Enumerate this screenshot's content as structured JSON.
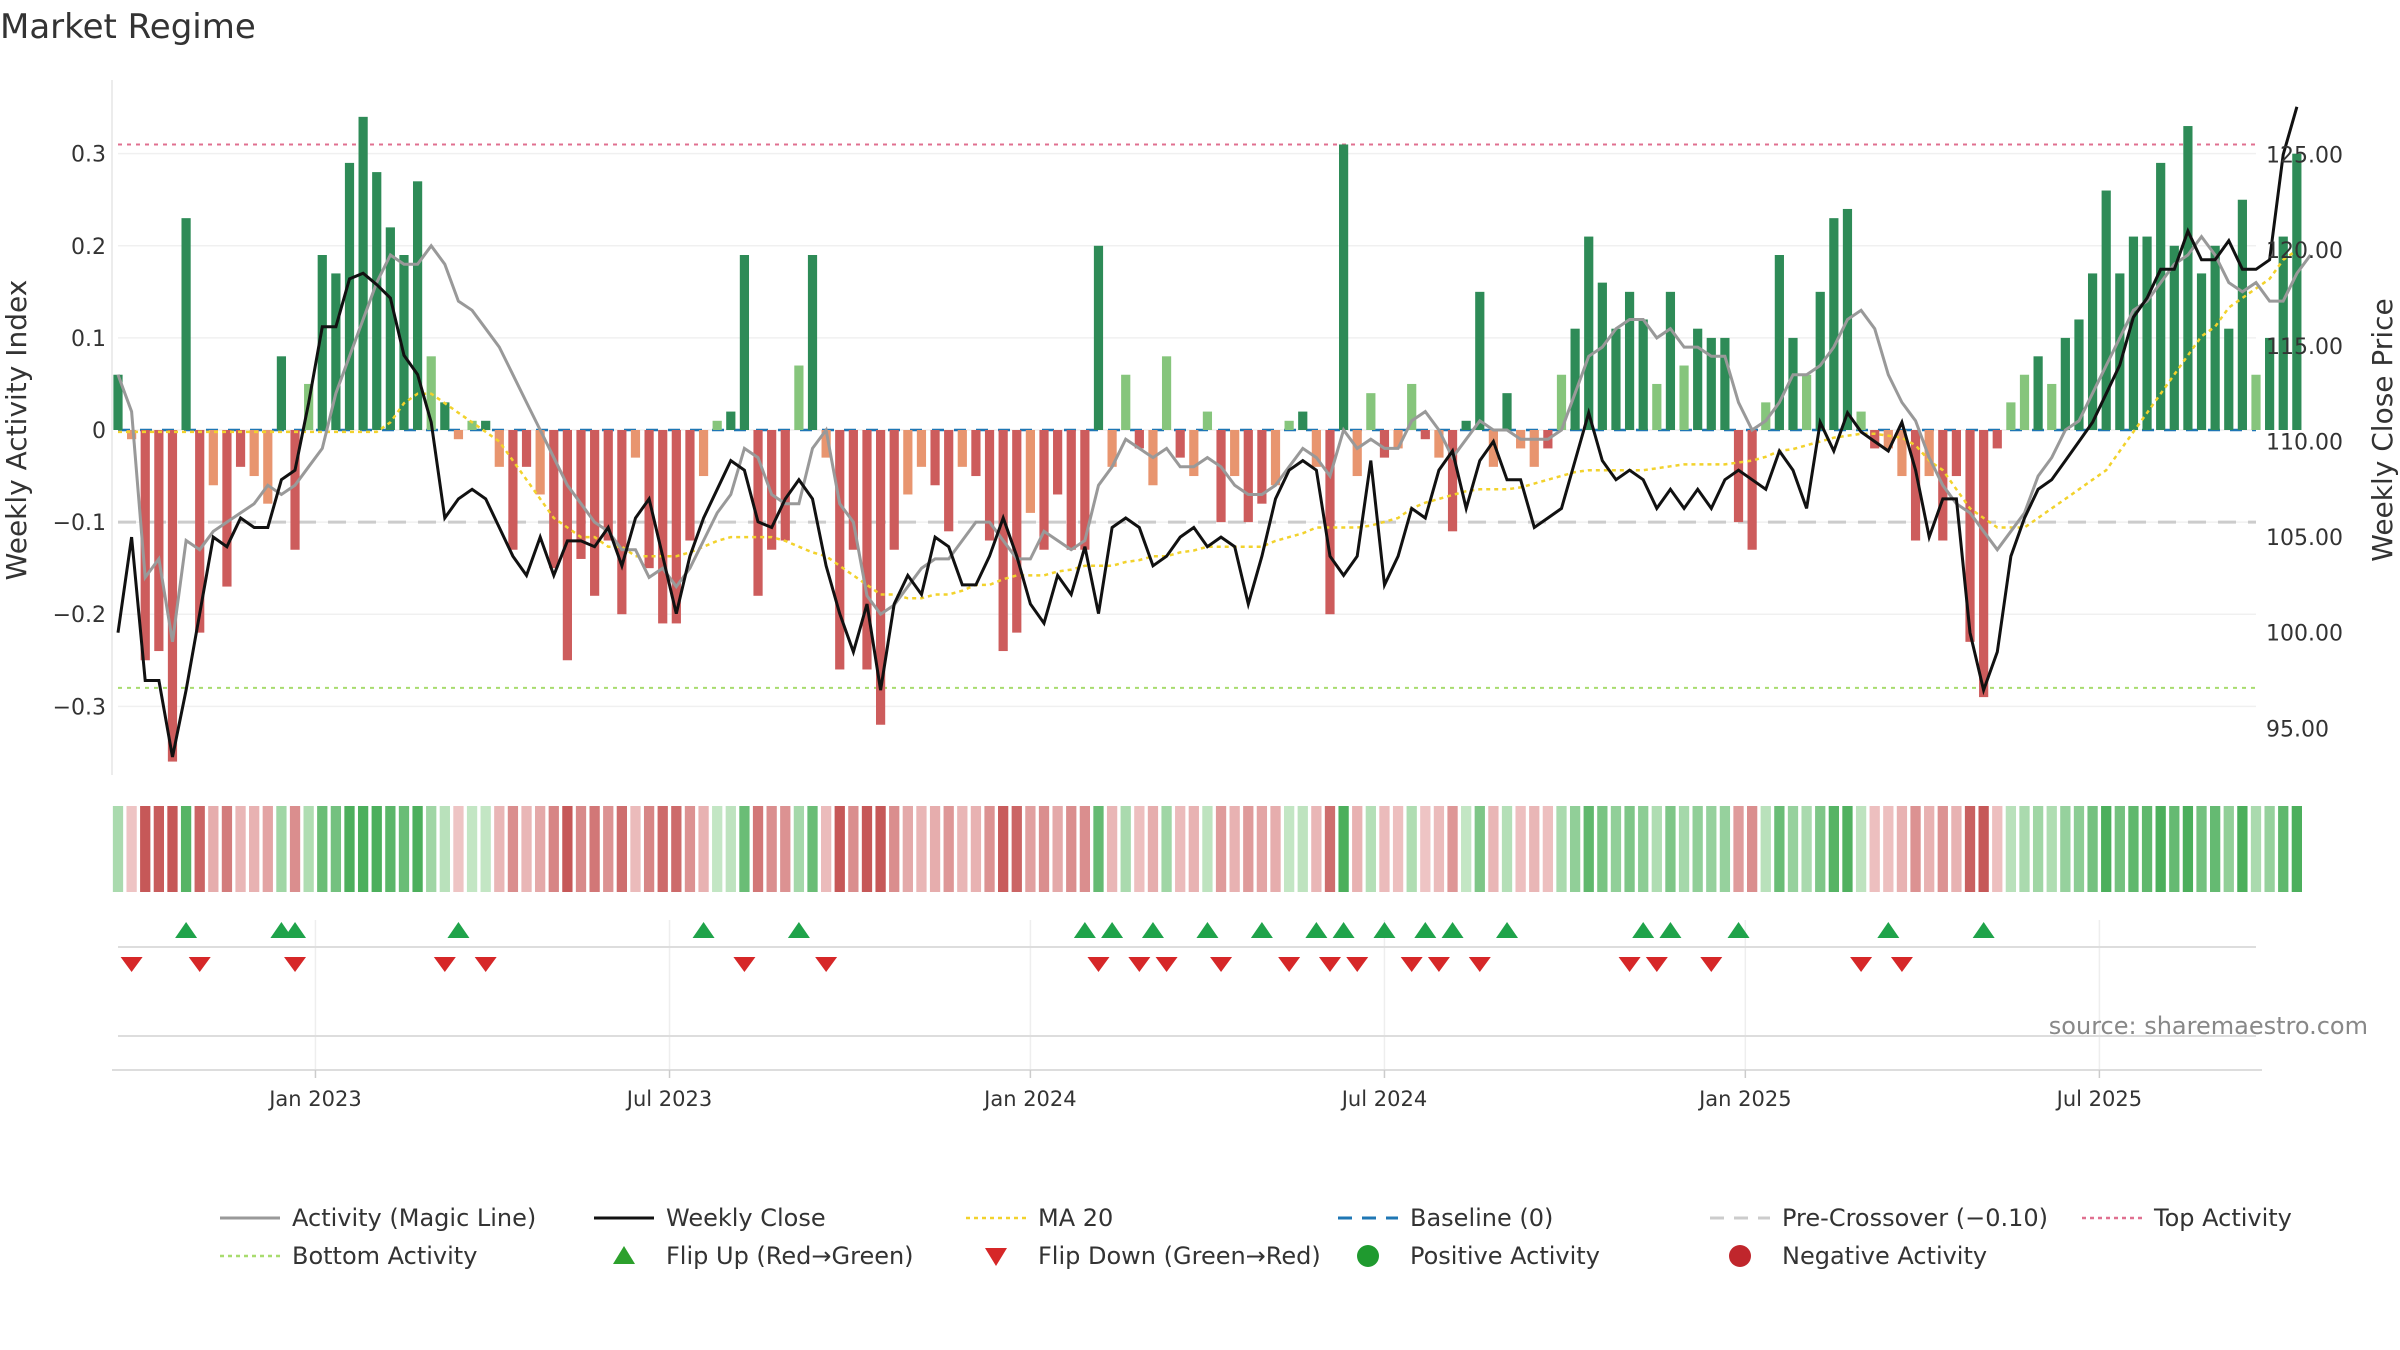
{
  "chart_data": {
    "type": "bar",
    "title": "Market Regime",
    "ylabel_left": "Weekly Activity Index",
    "ylabel_right": "Weekly Close Price",
    "ylim_left": [
      -0.38,
      0.38
    ],
    "ylim_right": [
      92.3,
      128.9
    ],
    "yticks_left": [
      {
        "value": 0.3,
        "label": "0.3"
      },
      {
        "value": 0.2,
        "label": "0.2"
      },
      {
        "value": 0.1,
        "label": "0.1"
      },
      {
        "value": 0,
        "label": "0"
      },
      {
        "value": -0.1,
        "label": "−0.1"
      },
      {
        "value": -0.2,
        "label": "−0.2"
      },
      {
        "value": -0.3,
        "label": "−0.3"
      }
    ],
    "yticks_right": [
      {
        "value": 125,
        "label": "125.00"
      },
      {
        "value": 120,
        "label": "120.00"
      },
      {
        "value": 115,
        "label": "115.00"
      },
      {
        "value": 110,
        "label": "110.00"
      },
      {
        "value": 105,
        "label": "105.00"
      },
      {
        "value": 100,
        "label": "100.00"
      },
      {
        "value": 95,
        "label": "95.00"
      }
    ],
    "x_range": [
      0,
      157
    ],
    "date_ticks": [
      {
        "week": 14.5,
        "label": "Jan 2023"
      },
      {
        "week": 40.5,
        "label": "Jul 2023"
      },
      {
        "week": 67,
        "label": "Jan 2024"
      },
      {
        "week": 93,
        "label": "Jul 2024"
      },
      {
        "week": 119.5,
        "label": "Jan 2025"
      },
      {
        "week": 145.5,
        "label": "Jul 2025"
      }
    ],
    "reference_lines": {
      "baseline": 0,
      "pre_crossover": -0.1,
      "top_activity": 0.31,
      "bottom_activity": -0.28
    },
    "activity_index": [
      0.06,
      -0.01,
      -0.25,
      -0.24,
      -0.36,
      0.23,
      -0.22,
      -0.06,
      -0.17,
      -0.04,
      -0.05,
      -0.08,
      0.08,
      -0.13,
      0.05,
      0.19,
      0.17,
      0.29,
      0.34,
      0.28,
      0.22,
      0.19,
      0.27,
      0.08,
      0.03,
      -0.01,
      0.01,
      0.01,
      -0.04,
      -0.13,
      -0.04,
      -0.07,
      -0.15,
      -0.25,
      -0.14,
      -0.18,
      -0.12,
      -0.2,
      -0.03,
      -0.15,
      -0.21,
      -0.21,
      -0.12,
      -0.05,
      0.01,
      0.02,
      0.19,
      -0.18,
      -0.13,
      -0.12,
      0.07,
      0.19,
      -0.03,
      -0.26,
      -0.13,
      -0.26,
      -0.32,
      -0.13,
      -0.07,
      -0.04,
      -0.06,
      -0.11,
      -0.04,
      -0.05,
      -0.12,
      -0.24,
      -0.22,
      -0.09,
      -0.13,
      -0.07,
      -0.13,
      -0.13,
      0.2,
      -0.04,
      0.06,
      -0.02,
      -0.06,
      0.08,
      -0.03,
      -0.05,
      0.02,
      -0.1,
      -0.05,
      -0.1,
      -0.08,
      -0.06,
      0.01,
      0.02,
      -0.04,
      -0.2,
      0.31,
      -0.05,
      0.04,
      -0.03,
      -0.02,
      0.05,
      -0.01,
      -0.03,
      -0.11,
      0.01,
      0.15,
      -0.04,
      0.04,
      -0.02,
      -0.04,
      -0.02,
      0.06,
      0.11,
      0.21,
      0.16,
      0.11,
      0.15,
      0.12,
      0.05,
      0.15,
      0.07,
      0.11,
      0.1,
      0.1,
      -0.1,
      -0.13,
      0.03,
      0.19,
      0.1,
      0.06,
      0.15,
      0.23,
      0.24,
      0.02,
      -0.02,
      -0.02,
      -0.05,
      -0.12,
      -0.05,
      -0.12,
      -0.05,
      -0.23,
      -0.29,
      -0.02,
      0.03,
      0.06,
      0.08,
      0.05,
      0.1,
      0.12,
      0.17,
      0.26,
      0.17,
      0.21,
      0.21,
      0.29,
      0.2,
      0.33,
      0.17,
      0.2,
      0.11,
      0.25,
      0.06,
      0.1,
      0.21,
      0.3
    ],
    "magic_line": [
      0.06,
      0.02,
      -0.16,
      -0.14,
      -0.23,
      -0.12,
      -0.13,
      -0.11,
      -0.1,
      -0.09,
      -0.08,
      -0.06,
      -0.07,
      -0.06,
      -0.04,
      -0.02,
      0.04,
      0.08,
      0.12,
      0.16,
      0.19,
      0.18,
      0.18,
      0.2,
      0.18,
      0.14,
      0.13,
      0.11,
      0.09,
      0.06,
      0.03,
      0.0,
      -0.03,
      -0.06,
      -0.08,
      -0.1,
      -0.11,
      -0.13,
      -0.13,
      -0.16,
      -0.15,
      -0.17,
      -0.15,
      -0.12,
      -0.09,
      -0.07,
      -0.02,
      -0.03,
      -0.07,
      -0.08,
      -0.08,
      -0.02,
      0.0,
      -0.08,
      -0.1,
      -0.18,
      -0.2,
      -0.19,
      -0.17,
      -0.15,
      -0.14,
      -0.14,
      -0.12,
      -0.1,
      -0.1,
      -0.12,
      -0.14,
      -0.14,
      -0.11,
      -0.12,
      -0.13,
      -0.12,
      -0.06,
      -0.04,
      -0.01,
      -0.02,
      -0.03,
      -0.02,
      -0.04,
      -0.04,
      -0.03,
      -0.04,
      -0.06,
      -0.07,
      -0.07,
      -0.06,
      -0.04,
      -0.02,
      -0.03,
      -0.05,
      0.0,
      -0.02,
      -0.01,
      -0.02,
      -0.02,
      0.01,
      0.02,
      0.0,
      -0.03,
      -0.01,
      0.01,
      0.0,
      0.0,
      -0.01,
      -0.01,
      -0.01,
      0.0,
      0.04,
      0.08,
      0.09,
      0.11,
      0.12,
      0.12,
      0.1,
      0.11,
      0.09,
      0.09,
      0.08,
      0.08,
      0.03,
      0.0,
      0.01,
      0.03,
      0.06,
      0.06,
      0.07,
      0.09,
      0.12,
      0.13,
      0.11,
      0.06,
      0.03,
      0.01,
      -0.03,
      -0.06,
      -0.08,
      -0.09,
      -0.11,
      -0.13,
      -0.11,
      -0.09,
      -0.05,
      -0.03,
      0.0,
      0.01,
      0.04,
      0.07,
      0.1,
      0.13,
      0.14,
      0.16,
      0.18,
      0.19,
      0.21,
      0.19,
      0.16,
      0.15,
      0.16,
      0.14,
      0.14,
      0.17,
      0.19
    ],
    "weekly_close": [
      100.0,
      105.0,
      97.5,
      97.5,
      93.5,
      97.0,
      101.0,
      105.0,
      104.5,
      106.0,
      105.5,
      105.5,
      108.0,
      108.5,
      112.0,
      116.0,
      116.0,
      118.5,
      118.8,
      118.2,
      117.5,
      114.5,
      113.5,
      111.0,
      106.0,
      107.0,
      107.5,
      107.0,
      105.5,
      104.0,
      103.0,
      105.0,
      103.0,
      104.8,
      104.8,
      104.5,
      105.5,
      103.5,
      106.0,
      107.0,
      104.0,
      101.0,
      104.0,
      106.0,
      107.5,
      109.0,
      108.5,
      105.8,
      105.5,
      107.0,
      108.0,
      107.0,
      103.5,
      101.0,
      99.0,
      101.5,
      97.0,
      101.5,
      103.0,
      102.0,
      105.0,
      104.5,
      102.5,
      102.5,
      104.0,
      106.0,
      104.0,
      101.5,
      100.5,
      103.0,
      102.0,
      104.5,
      101.0,
      105.5,
      106.0,
      105.5,
      103.5,
      104.0,
      105.0,
      105.5,
      104.5,
      105.0,
      104.5,
      101.5,
      104.0,
      107.0,
      108.5,
      109.0,
      108.5,
      104.0,
      103.0,
      104.0,
      109.0,
      102.5,
      104.0,
      106.5,
      106.0,
      108.5,
      109.5,
      106.5,
      109.0,
      110.0,
      108.0,
      108.0,
      105.5,
      106.0,
      106.5,
      109.0,
      111.5,
      109.0,
      108.0,
      108.5,
      108.0,
      106.5,
      107.5,
      106.5,
      107.5,
      106.5,
      108.0,
      108.5,
      108.0,
      107.5,
      109.5,
      108.5,
      106.5,
      111.0,
      109.5,
      111.5,
      110.5,
      110.0,
      109.5,
      111.0,
      108.5,
      105.0,
      107.0,
      107.0,
      100.0,
      97.0,
      99.0,
      104.0,
      106.0,
      107.5,
      108.0,
      109.0,
      110.0,
      111.0,
      112.5,
      114.0,
      116.5,
      117.5,
      119.0,
      119.0,
      121.0,
      119.5,
      119.5,
      120.5,
      119.0,
      119.0,
      119.5,
      125.0,
      127.5
    ],
    "ma20": [
      110.5,
      110.5,
      110.5,
      110.5,
      110.5,
      110.5,
      110.5,
      110.5,
      110.5,
      110.5,
      110.5,
      110.5,
      110.5,
      110.5,
      110.5,
      110.5,
      110.5,
      110.5,
      110.5,
      110.5,
      111.0,
      112.0,
      112.5,
      112.5,
      112.0,
      111.5,
      111.0,
      110.5,
      110.0,
      109.0,
      108.0,
      107.0,
      106.0,
      105.5,
      105.0,
      105.0,
      104.5,
      104.5,
      104.0,
      104.0,
      104.0,
      104.0,
      104.2,
      104.5,
      104.8,
      105.0,
      105.0,
      105.0,
      105.0,
      104.8,
      104.5,
      104.2,
      104.0,
      103.5,
      103.0,
      102.5,
      102.0,
      102.0,
      101.8,
      101.8,
      102.0,
      102.0,
      102.2,
      102.5,
      102.5,
      102.8,
      103.0,
      103.0,
      103.0,
      103.2,
      103.3,
      103.5,
      103.5,
      103.5,
      103.7,
      103.8,
      104.0,
      104.0,
      104.2,
      104.3,
      104.5,
      104.5,
      104.5,
      104.5,
      104.5,
      104.8,
      105.0,
      105.2,
      105.5,
      105.5,
      105.5,
      105.5,
      105.6,
      105.8,
      106.0,
      106.5,
      106.8,
      107.0,
      107.2,
      107.4,
      107.5,
      107.5,
      107.5,
      107.6,
      107.8,
      108.0,
      108.2,
      108.4,
      108.5,
      108.5,
      108.5,
      108.5,
      108.5,
      108.6,
      108.7,
      108.8,
      108.8,
      108.8,
      108.8,
      108.9,
      109.0,
      109.2,
      109.5,
      109.6,
      109.8,
      110.0,
      110.2,
      110.3,
      110.4,
      110.4,
      110.3,
      110.2,
      109.8,
      109.0,
      108.5,
      107.5,
      106.5,
      106.0,
      105.5,
      105.5,
      105.5,
      106.0,
      106.5,
      107.0,
      107.5,
      108.0,
      108.5,
      109.5,
      110.5,
      111.5,
      112.5,
      113.5,
      114.5,
      115.5,
      116.0,
      117.0,
      117.5,
      118.0,
      118.5,
      119.5,
      120.0
    ],
    "flip_up_weeks": [
      5,
      12,
      13,
      25,
      43,
      50,
      71,
      73,
      76,
      80,
      84,
      88,
      90,
      93,
      96,
      98,
      102,
      112,
      114,
      119,
      130,
      137
    ],
    "flip_down_weeks": [
      1,
      6,
      13,
      24,
      27,
      46,
      52,
      72,
      75,
      77,
      81,
      86,
      89,
      91,
      95,
      97,
      100,
      111,
      113,
      117,
      128,
      131
    ],
    "legend": [
      {
        "label": "Activity (Magic Line)",
        "kind": "line",
        "color": "#999999"
      },
      {
        "label": "Weekly Close",
        "kind": "line",
        "color": "#111111"
      },
      {
        "label": "MA 20",
        "kind": "dotted",
        "color": "#f2d22c"
      },
      {
        "label": "Baseline (0)",
        "kind": "dashed",
        "color": "#1f77b4"
      },
      {
        "label": "Pre-Crossover (−0.10)",
        "kind": "dashed",
        "color": "#cccccc"
      },
      {
        "label": "Top Activity",
        "kind": "dotted",
        "color": "#e07090"
      },
      {
        "label": "Bottom Activity",
        "kind": "dotted",
        "color": "#a8dc6e"
      },
      {
        "label": "Flip Up (Red→Green)",
        "kind": "tri-up",
        "color": "#2ca02c"
      },
      {
        "label": "Flip Down (Green→Red)",
        "kind": "tri-down",
        "color": "#d62728"
      },
      {
        "label": "Positive Activity",
        "kind": "circle",
        "color": "#1f9a2f"
      },
      {
        "label": "Negative Activity",
        "kind": "circle",
        "color": "#c0262c"
      }
    ],
    "source": "source: sharemaestro.com"
  }
}
